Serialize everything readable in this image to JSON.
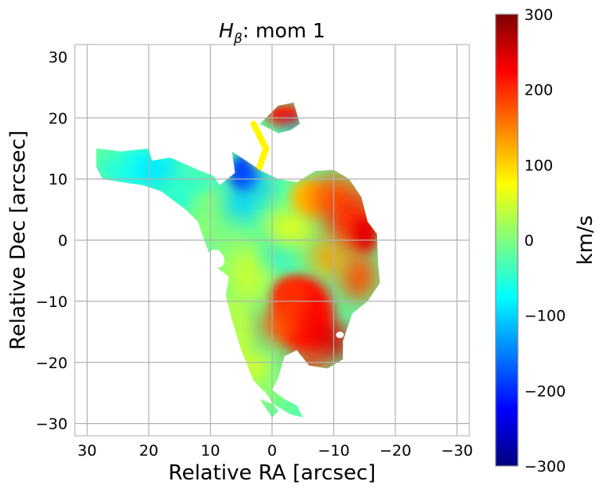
{
  "chart_data": {
    "type": "heatmap",
    "title": {
      "symbol": "H",
      "subscript": "β",
      "suffix": ": mom 1"
    },
    "xlabel": "Relative RA [arcsec]",
    "ylabel": "Relative Dec [arcsec]",
    "xlim": [
      32,
      -32
    ],
    "ylim": [
      -32,
      32
    ],
    "x_ticks": [
      30,
      20,
      10,
      0,
      -10,
      -20,
      -30
    ],
    "x_tick_labels": [
      "30",
      "20",
      "10",
      "0",
      "−10",
      "−20",
      "−30"
    ],
    "y_ticks": [
      20,
      10,
      0,
      -10,
      -20,
      -30
    ],
    "y_tick_labels": [
      "20",
      "10",
      "0",
      "−10",
      "−20",
      "−30"
    ],
    "grid": true,
    "colorbar": {
      "label": "km/s",
      "range": [
        -300,
        300
      ],
      "ticks": [
        300,
        200,
        100,
        0,
        -100,
        -200,
        -300
      ],
      "tick_labels": [
        "300",
        "200",
        "100",
        "0",
        "−100",
        "−200",
        "−300"
      ],
      "colormap": "jet",
      "colormap_stops": [
        "#00007f",
        "#0000ff",
        "#00ffff",
        "#7fff7f",
        "#ffff00",
        "#ff0000",
        "#7f0000"
      ]
    },
    "region": {
      "outline": [
        [
          28.5,
          15
        ],
        [
          24.5,
          14.5
        ],
        [
          20,
          15
        ],
        [
          19.5,
          13
        ],
        [
          16.5,
          13.5
        ],
        [
          12,
          11.5
        ],
        [
          9.5,
          10.5
        ],
        [
          8.5,
          9
        ],
        [
          6,
          11
        ],
        [
          6.5,
          14.5
        ],
        [
          3.5,
          12.5
        ],
        [
          1.5,
          11.2
        ],
        [
          -1,
          10
        ],
        [
          -4,
          9.5
        ],
        [
          -7,
          11.3
        ],
        [
          -10,
          11.5
        ],
        [
          -12.5,
          10
        ],
        [
          -14.5,
          7
        ],
        [
          -15.5,
          3
        ],
        [
          -17,
          1
        ],
        [
          -17.2,
          -4
        ],
        [
          -17.5,
          -7
        ],
        [
          -15.5,
          -10
        ],
        [
          -13,
          -12
        ],
        [
          -11.5,
          -16.5
        ],
        [
          -11.5,
          -19.5
        ],
        [
          -9,
          -21
        ],
        [
          -6,
          -20.5
        ],
        [
          -4,
          -18
        ],
        [
          -2,
          -19
        ],
        [
          -1,
          -22.5
        ],
        [
          0,
          -24.5
        ],
        [
          -2,
          -26
        ],
        [
          -4,
          -27
        ],
        [
          -5,
          -29
        ],
        [
          -3,
          -28.5
        ],
        [
          -0.5,
          -27
        ],
        [
          2,
          -26
        ],
        [
          0,
          -29
        ],
        [
          -1,
          -28
        ],
        [
          1,
          -25
        ],
        [
          3,
          -23
        ],
        [
          5,
          -18
        ],
        [
          6.5,
          -13
        ],
        [
          7.5,
          -9
        ],
        [
          7,
          -6
        ],
        [
          9.5,
          -4
        ],
        [
          11,
          0
        ],
        [
          12,
          3
        ],
        [
          14,
          5
        ],
        [
          16,
          6.5
        ],
        [
          18,
          8
        ],
        [
          21,
          9
        ],
        [
          24.5,
          9.5
        ],
        [
          27.5,
          10
        ],
        [
          28.5,
          12
        ]
      ],
      "knot_outline": [
        [
          -1,
          22
        ],
        [
          -3.5,
          22.5
        ],
        [
          -4.5,
          19
        ],
        [
          -3,
          18
        ],
        [
          -1,
          17.5
        ],
        [
          1,
          18.5
        ],
        [
          2,
          19
        ]
      ],
      "knot_link": [
        [
          3,
          19
        ],
        [
          1,
          15
        ],
        [
          2,
          12
        ]
      ],
      "hole_at": [
        9,
        -3
      ],
      "features": [
        {
          "type": "redshifted_lobe",
          "x": -5,
          "y": -12,
          "velocity": 220
        },
        {
          "type": "redshifted_ridge",
          "x": -12,
          "y": 4,
          "velocity": 200
        },
        {
          "type": "blueshifted_patch",
          "x": 4.5,
          "y": 10.5,
          "velocity": -180
        },
        {
          "type": "redshifted_knot",
          "x": -2,
          "y": 20.5,
          "velocity": 220
        },
        {
          "type": "systemic_arm",
          "x": 16,
          "y": 10,
          "velocity": -30
        }
      ]
    }
  }
}
